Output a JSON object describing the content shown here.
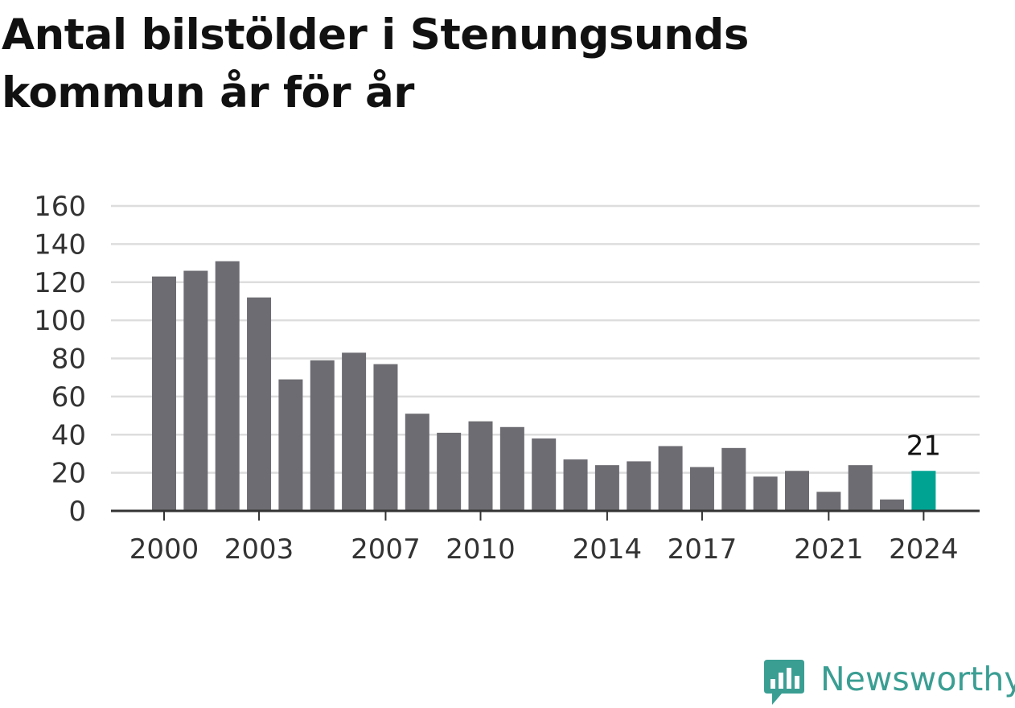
{
  "title_line1": "Antal bilstölder i Stenungsunds",
  "title_line2": "kommun år för år",
  "brand": {
    "name": "Newsworthy",
    "color": "#3a9e93",
    "icon": "newsworthy-logo-icon"
  },
  "colors": {
    "bar": "#6d6c72",
    "highlight": "#00a392",
    "grid": "#dddddd",
    "axis": "#333333"
  },
  "chart_data": {
    "type": "bar",
    "title": "Antal bilstölder i Stenungsunds kommun år för år",
    "xlabel": "",
    "ylabel": "",
    "categories": [
      "2000",
      "2001",
      "2002",
      "2003",
      "2004",
      "2005",
      "2006",
      "2007",
      "2008",
      "2009",
      "2010",
      "2011",
      "2012",
      "2013",
      "2014",
      "2015",
      "2016",
      "2017",
      "2018",
      "2019",
      "2020",
      "2021",
      "2022",
      "2023",
      "2024"
    ],
    "values": [
      123,
      126,
      131,
      112,
      69,
      79,
      83,
      77,
      51,
      41,
      47,
      44,
      38,
      27,
      24,
      26,
      34,
      23,
      33,
      18,
      21,
      10,
      24,
      6,
      21
    ],
    "x_tick_labels": [
      "2000",
      "2003",
      "2007",
      "2010",
      "2014",
      "2017",
      "2021",
      "2024"
    ],
    "y_ticks": [
      0,
      20,
      40,
      60,
      80,
      100,
      120,
      140,
      160
    ],
    "ylim": [
      0,
      160
    ],
    "grid": true,
    "highlight": {
      "category": "2024",
      "label": "21"
    }
  }
}
